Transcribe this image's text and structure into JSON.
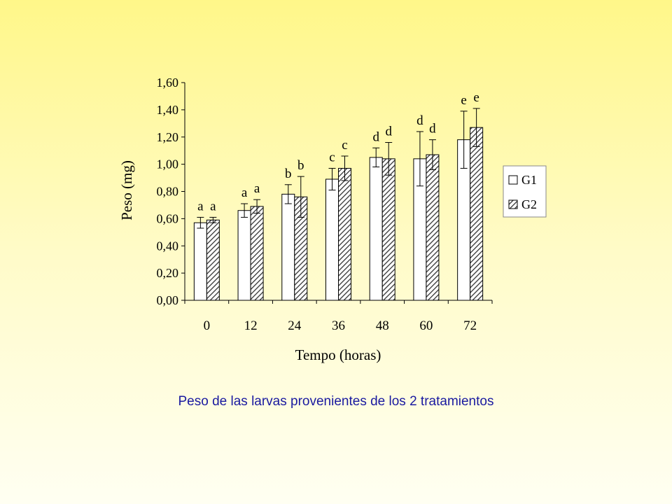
{
  "caption": "Peso de las larvas provenientes de los 2 tratamientos",
  "chart_data": {
    "type": "bar",
    "title": "",
    "xlabel": "Tempo (horas)",
    "ylabel": "Peso (mg)",
    "ylim": [
      0,
      1.6
    ],
    "y_ticks": [
      "0,00",
      "0,20",
      "0,40",
      "0,60",
      "0,80",
      "1,00",
      "1,20",
      "1,40",
      "1,60"
    ],
    "categories": [
      "0",
      "12",
      "24",
      "36",
      "48",
      "60",
      "72"
    ],
    "grid": false,
    "legend_position": "right",
    "series": [
      {
        "name": "G1",
        "pattern": "solid",
        "values": [
          0.57,
          0.66,
          0.78,
          0.89,
          1.05,
          1.04,
          1.18
        ],
        "error": [
          0.04,
          0.05,
          0.07,
          0.08,
          0.07,
          0.2,
          0.21
        ],
        "labels": [
          "a",
          "a",
          "b",
          "c",
          "d",
          "d",
          "e"
        ]
      },
      {
        "name": "G2",
        "pattern": "hatched",
        "values": [
          0.59,
          0.69,
          0.76,
          0.97,
          1.04,
          1.07,
          1.27
        ],
        "error": [
          0.02,
          0.05,
          0.15,
          0.09,
          0.12,
          0.11,
          0.14
        ],
        "labels": [
          "a",
          "a",
          "b",
          "c",
          "d",
          "d",
          "e"
        ]
      }
    ],
    "colors": {
      "bar_fill": "#ffffff",
      "hatch": "#333333",
      "axis": "#000000",
      "caption": "#1a1aa0"
    }
  }
}
